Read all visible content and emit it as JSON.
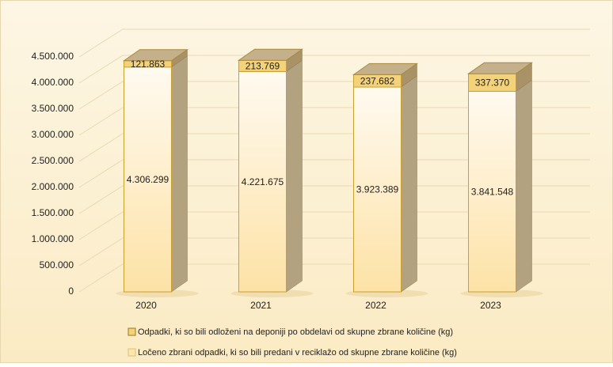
{
  "chart_data": {
    "type": "bar3d_stacked",
    "categories": [
      "2020",
      "2021",
      "2022",
      "2023"
    ],
    "series": [
      {
        "name": "Ločeno zbrani odpadki, ki so bili predani v reciklažo od skupne zbrane količine (kg)",
        "color": "#fde6b0",
        "values": [
          4306299,
          4221675,
          3923389,
          3841548
        ],
        "value_labels": [
          "4.306.299",
          "4.221.675",
          "3.923.389",
          "3.841.548"
        ]
      },
      {
        "name": "Odpadki,  ki so bili odloženi na deponiji po obdelavi od skupne zbrane količine (kg)",
        "color": "#f3d27a",
        "values": [
          121863,
          213769,
          237682,
          337370
        ],
        "value_labels": [
          "121.863",
          "213.769",
          "237.682",
          "337.370"
        ]
      }
    ],
    "ylim": [
      0,
      4500000
    ],
    "yticks": [
      0,
      {
        "value": 500000,
        "label": "500.000"
      },
      {
        "value": 1000000,
        "label": "1.000.000"
      },
      {
        "value": 1500000,
        "label": "1.500.000"
      },
      {
        "value": 2000000,
        "label": "2.000.000"
      },
      {
        "value": 2500000,
        "label": "2.500.000"
      },
      {
        "value": 3000000,
        "label": "3.000.000"
      },
      {
        "value": 3500000,
        "label": "3.500.000"
      },
      {
        "value": 4000000,
        "label": "4.000.000"
      },
      {
        "value": 4500000,
        "label": "4.500.000"
      }
    ],
    "grid": true
  }
}
